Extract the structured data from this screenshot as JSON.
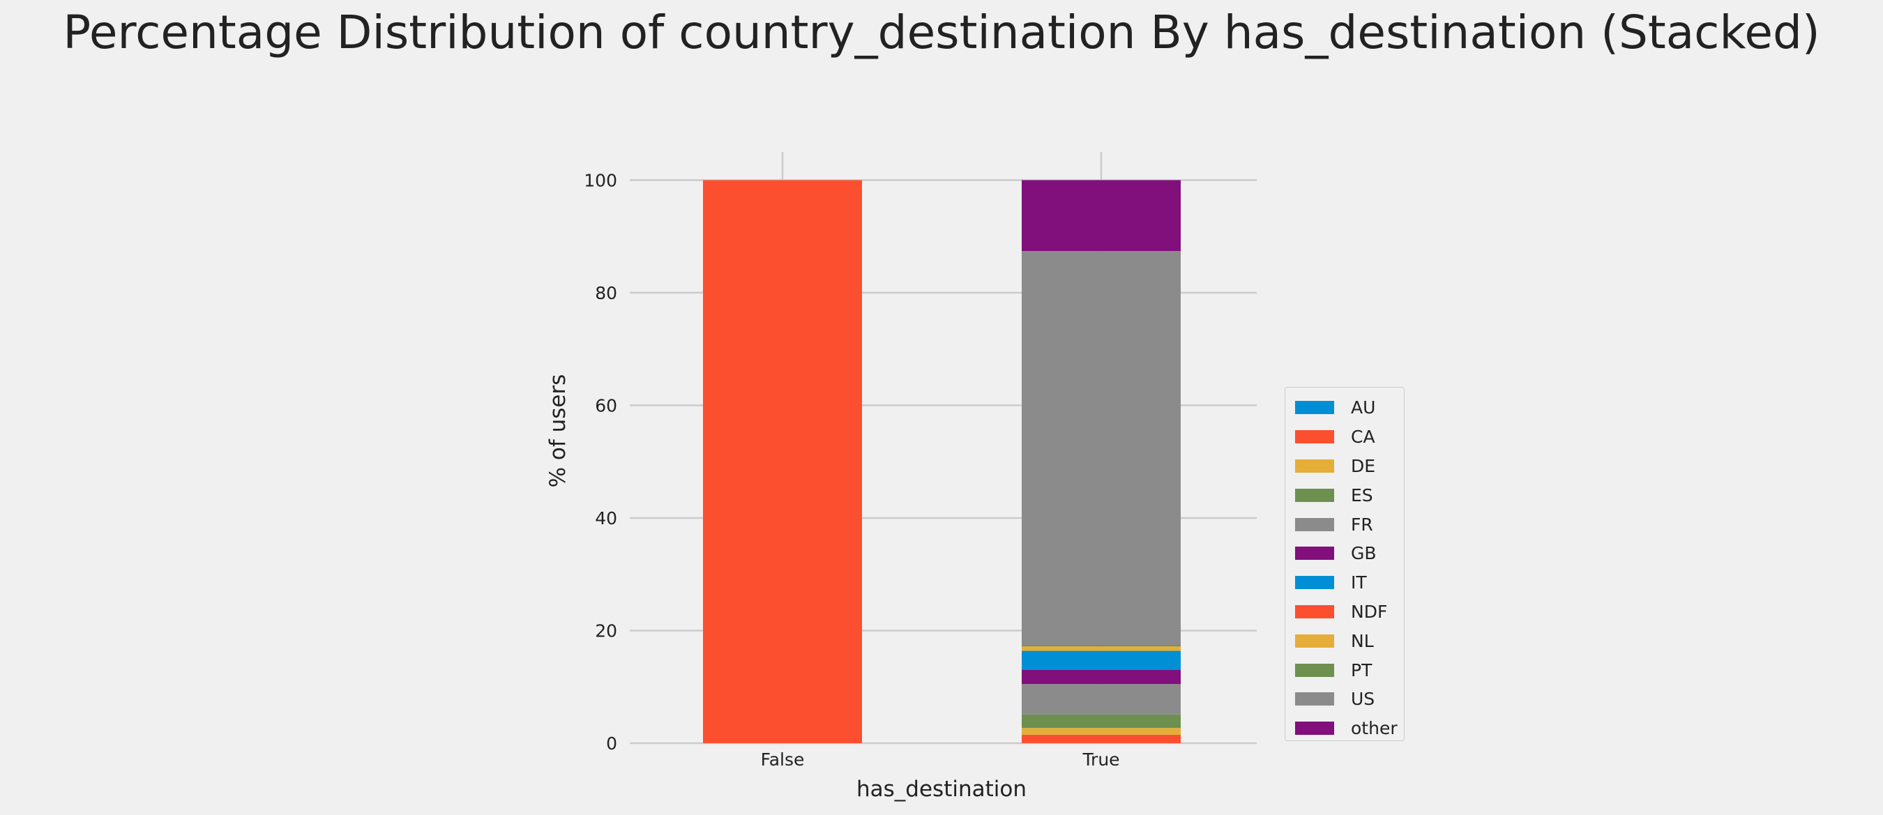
{
  "chart_data": {
    "type": "bar",
    "stacked": true,
    "title": "Percentage Distribution of country_destination By has_destination (Stacked)",
    "xlabel": "has_destination",
    "ylabel": "% of users",
    "categories": [
      "False",
      "True"
    ],
    "ylim": [
      0,
      105
    ],
    "yticks": [
      "0",
      "20",
      "40",
      "60",
      "80",
      "100"
    ],
    "grid": true,
    "legend_position": "right",
    "series": [
      {
        "name": "AU",
        "color": "#008fd5",
        "values": [
          0,
          0.0
        ]
      },
      {
        "name": "CA",
        "color": "#fc4f30",
        "values": [
          0,
          1.5
        ]
      },
      {
        "name": "DE",
        "color": "#e5ae38",
        "values": [
          0,
          1.2
        ]
      },
      {
        "name": "ES",
        "color": "#6d904f",
        "values": [
          0,
          2.4
        ]
      },
      {
        "name": "FR",
        "color": "#8b8b8b",
        "values": [
          0,
          5.4
        ]
      },
      {
        "name": "GB",
        "color": "#810f7c",
        "values": [
          0,
          2.5
        ]
      },
      {
        "name": "IT",
        "color": "#008fd5",
        "values": [
          0,
          3.4
        ]
      },
      {
        "name": "NDF",
        "color": "#fc4f30",
        "values": [
          100,
          0.0
        ]
      },
      {
        "name": "NL",
        "color": "#e5ae38",
        "values": [
          0,
          0.8
        ]
      },
      {
        "name": "PT",
        "color": "#6d904f",
        "values": [
          0,
          0.2
        ]
      },
      {
        "name": "US",
        "color": "#8b8b8b",
        "values": [
          0,
          70.0
        ]
      },
      {
        "name": "other",
        "color": "#810f7c",
        "values": [
          0,
          12.6
        ]
      }
    ]
  }
}
